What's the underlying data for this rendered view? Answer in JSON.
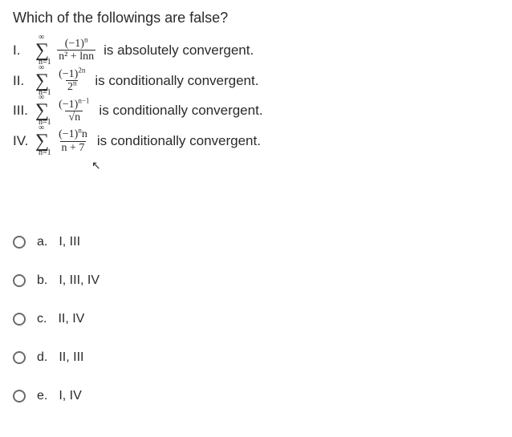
{
  "question_title": "Which of the followings are false?",
  "sigma_top": "∞",
  "sigma_bot": "n=1",
  "statements": [
    {
      "roman": "I.",
      "frac_num": "(−1)",
      "frac_num_sup": "n",
      "frac_den": "n² + lnn",
      "trail": "is absolutely convergent."
    },
    {
      "roman": "II.",
      "frac_num": "(−1)",
      "frac_num_sup": "2n",
      "frac_den": "2",
      "frac_den_sup": "n",
      "trail": "is conditionally convergent."
    },
    {
      "roman": "III.",
      "frac_num": "(−1)",
      "frac_num_sup": "n−1",
      "frac_den_sqrt": "n",
      "trail": "is conditionally convergent."
    },
    {
      "roman": "IV.",
      "frac_num": "(−1)",
      "frac_num_sup": "n",
      "frac_num_tail": "n",
      "frac_den": "n + 7",
      "trail": "is conditionally convergent."
    }
  ],
  "options": [
    {
      "letter": "a.",
      "text": "I, III"
    },
    {
      "letter": "b.",
      "text": "I, III, IV"
    },
    {
      "letter": "c.",
      "text": "II, IV"
    },
    {
      "letter": "d.",
      "text": "II, III"
    },
    {
      "letter": "e.",
      "text": "I, IV"
    }
  ]
}
